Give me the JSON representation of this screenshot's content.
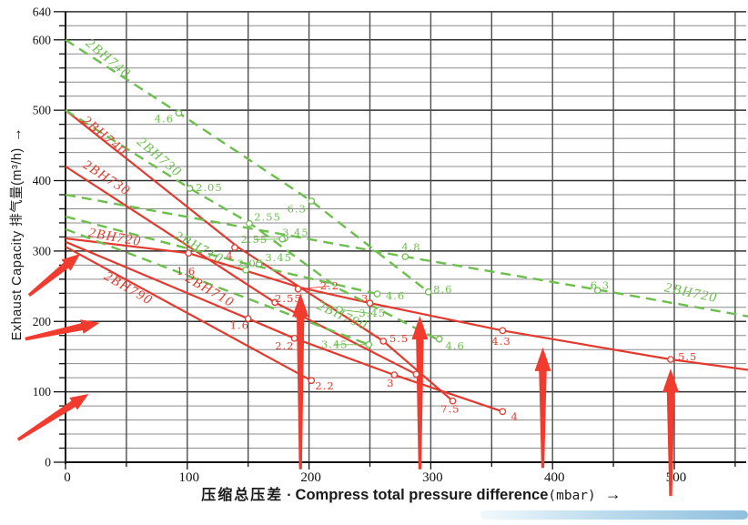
{
  "chart_data": {
    "type": "line",
    "xlabel": {
      "zh": "压缩总压差",
      "dot": "·",
      "en": "Compress total pressure difference",
      "unit": "(mbar)",
      "arrow": "→"
    },
    "ylabel": {
      "text": "Exhaust Capacity 排气量(m³/h)",
      "arrow": "→"
    },
    "xlim": [
      0,
      560
    ],
    "ylim": [
      0,
      640
    ],
    "x_ticks": [
      0,
      100,
      200,
      300,
      400,
      500
    ],
    "y_ticks": [
      0,
      100,
      200,
      300,
      400,
      500,
      600,
      640
    ],
    "x_minor_step": 50,
    "y_minor_step": 20,
    "grid": true,
    "legend_position": "none",
    "colors": {
      "red": "#e23a2e",
      "green": "#6cbf4d",
      "arrow": "#f23b2f",
      "grid_major": "#2f2f2f",
      "grid_minor": "#8c8c8c",
      "grid_vertical": "#4d4d4d",
      "axis": "#111111",
      "accent_bar": [
        "#f2f9fd",
        "#8fc0de"
      ]
    },
    "series": [
      {
        "name": "2BH740",
        "color": "red",
        "style": "solid",
        "points": [
          [
            0,
            500
          ],
          [
            142,
            305
          ],
          [
            261,
            172
          ],
          [
            318,
            87
          ]
        ]
      },
      {
        "name": "2BH730",
        "color": "red",
        "style": "solid",
        "points": [
          [
            0,
            420
          ],
          [
            172,
            227
          ],
          [
            288,
            125
          ]
        ]
      },
      {
        "name": "2BH720",
        "color": "red",
        "style": "solid",
        "points": [
          [
            0,
            318
          ],
          [
            101,
            297
          ],
          [
            193,
            248
          ],
          [
            250,
            226
          ],
          [
            359,
            187
          ],
          [
            497,
            146
          ],
          [
            561,
            131
          ]
        ]
      },
      {
        "name": "2BH710",
        "color": "red",
        "style": "solid",
        "points": [
          [
            0,
            313
          ],
          [
            150,
            204
          ],
          [
            188,
            176
          ],
          [
            270,
            124
          ],
          [
            359,
            72
          ]
        ]
      },
      {
        "name": "2BH790",
        "color": "red",
        "style": "solid",
        "points": [
          [
            0,
            306
          ],
          [
            202,
            116
          ]
        ]
      },
      {
        "name": "2BH740",
        "color": "green",
        "style": "dashed",
        "points": [
          [
            0,
            600
          ],
          [
            93,
            496
          ],
          [
            202,
            371
          ],
          [
            298,
            242
          ]
        ]
      },
      {
        "name": "2BH730",
        "color": "green",
        "style": "dashed",
        "points": [
          [
            0,
            500
          ],
          [
            102,
            389
          ],
          [
            151,
            340
          ],
          [
            225,
            246
          ],
          [
            307,
            173
          ]
        ]
      },
      {
        "name": "2BH720",
        "color": "green",
        "style": "dashed",
        "points": [
          [
            0,
            380
          ],
          [
            279,
            292
          ],
          [
            437,
            245
          ],
          [
            561,
            207
          ]
        ]
      },
      {
        "name": "2BH710",
        "color": "green",
        "style": "dashed",
        "points": [
          [
            0,
            349
          ],
          [
            146,
            283
          ],
          [
            256,
            239
          ]
        ]
      },
      {
        "name": "2BH790",
        "color": "green",
        "style": "dashed",
        "points": [
          [
            0,
            331
          ],
          [
            249,
            167
          ]
        ]
      }
    ],
    "power_annotations": [
      {
        "label": "4",
        "color": "red",
        "pos": [
          135,
          293
        ],
        "circle": [
          139,
          305
        ]
      },
      {
        "label": "1.6",
        "color": "red",
        "pos": [
          99,
          271
        ],
        "circle": [
          101,
          297
        ]
      },
      {
        "label": "1.6",
        "color": "red",
        "pos": [
          143,
          194
        ],
        "circle": [
          150,
          204
        ]
      },
      {
        "label": "2.2",
        "color": "red",
        "pos": [
          217,
          250
        ],
        "circle": [
          191,
          246
        ],
        "leader": true
      },
      {
        "label": "2.55",
        "color": "red",
        "pos": [
          183,
          232
        ],
        "circle": [
          172,
          227
        ]
      },
      {
        "label": "3",
        "color": "red",
        "pos": [
          246,
          232
        ],
        "circle": [
          250,
          226
        ]
      },
      {
        "label": "3",
        "color": "red",
        "pos": [
          267,
          112
        ],
        "circle": [
          270,
          124
        ]
      },
      {
        "label": "2.2",
        "color": "red",
        "pos": [
          180,
          165
        ],
        "circle": [
          188,
          176
        ]
      },
      {
        "label": "2.2",
        "color": "red",
        "pos": [
          213,
          108
        ],
        "circle": [
          202,
          116
        ]
      },
      {
        "label": "4",
        "color": "red",
        "pos": [
          292,
          116
        ],
        "circle": [
          288,
          125
        ]
      },
      {
        "label": "5.5",
        "color": "red",
        "pos": [
          274,
          175
        ],
        "circle": [
          261,
          172
        ]
      },
      {
        "label": "7.5",
        "color": "red",
        "pos": [
          316,
          75
        ],
        "circle": [
          318,
          87
        ]
      },
      {
        "label": "4",
        "color": "red",
        "pos": [
          369,
          64
        ],
        "circle": [
          359,
          72
        ]
      },
      {
        "label": "4.3",
        "color": "red",
        "pos": [
          358,
          171
        ],
        "circle": [
          359,
          187
        ]
      },
      {
        "label": "5.5",
        "color": "red",
        "pos": [
          511,
          149
        ],
        "circle": [
          497,
          146
        ]
      },
      {
        "label": "4.6",
        "color": "green",
        "pos": [
          81,
          487
        ],
        "circle": [
          93,
          496
        ]
      },
      {
        "label": "2.05",
        "color": "green",
        "pos": [
          118,
          390
        ],
        "circle": [
          102,
          389
        ]
      },
      {
        "label": "6.3",
        "color": "green",
        "pos": [
          190,
          359
        ],
        "circle": [
          202,
          371
        ]
      },
      {
        "label": "2.55",
        "color": "green",
        "pos": [
          166,
          348
        ],
        "circle": [
          151,
          339
        ]
      },
      {
        "label": "3.45",
        "color": "green",
        "pos": [
          189,
          326
        ],
        "circle": [
          180,
          318
        ]
      },
      {
        "label": "2.55",
        "color": "green",
        "pos": [
          155,
          316
        ],
        "circle": [
          178,
          317
        ],
        "leader": true
      },
      {
        "label": "3.45",
        "color": "green",
        "pos": [
          175,
          290
        ],
        "circle": [
          159,
          282
        ]
      },
      {
        "label": "2.05",
        "color": "green",
        "pos": [
          152,
          282
        ],
        "circle": [
          148,
          273
        ]
      },
      {
        "label": "4.8",
        "color": "green",
        "pos": [
          284,
          305
        ],
        "circle": [
          279,
          292
        ]
      },
      {
        "label": "8.6",
        "color": "green",
        "pos": [
          310,
          245
        ],
        "circle": [
          298,
          242
        ]
      },
      {
        "label": "4.6",
        "color": "green",
        "pos": [
          271,
          236
        ],
        "circle": [
          256,
          239
        ]
      },
      {
        "label": "3.45",
        "color": "green",
        "pos": [
          252,
          211
        ],
        "circle": [
          225,
          217
        ],
        "leader": true
      },
      {
        "label": "3.45",
        "color": "green",
        "pos": [
          221,
          167
        ],
        "circle": [
          249,
          167
        ],
        "leader": true
      },
      {
        "label": "4.6",
        "color": "green",
        "pos": [
          320,
          165
        ],
        "circle": [
          307,
          175
        ]
      },
      {
        "label": "6.3",
        "color": "green",
        "pos": [
          439,
          251
        ],
        "circle": [
          437,
          244
        ]
      }
    ],
    "model_labels": [
      {
        "text": "2BH740",
        "color": "green",
        "pos": [
          33,
          569
        ],
        "rot": 40
      },
      {
        "text": "2BH730",
        "color": "green",
        "pos": [
          75,
          429
        ],
        "rot": 40
      },
      {
        "text": "2BH710",
        "color": "green",
        "pos": [
          108,
          300
        ],
        "rot": 28
      },
      {
        "text": "2BH790",
        "color": "green",
        "pos": [
          226,
          203
        ],
        "rot": 24
      },
      {
        "text": "2BH720",
        "color": "green",
        "pos": [
          513,
          235
        ],
        "rot": 12
      },
      {
        "text": "2BH740",
        "color": "red",
        "pos": [
          30,
          459
        ],
        "rot": 40
      },
      {
        "text": "2BH730",
        "color": "red",
        "pos": [
          32,
          399
        ],
        "rot": 33
      },
      {
        "text": "2BH720",
        "color": "red",
        "pos": [
          40,
          314
        ],
        "rot": 10
      },
      {
        "text": "2BH790",
        "color": "red",
        "pos": [
          50,
          242
        ],
        "rot": 30
      },
      {
        "text": "2BH710",
        "color": "red",
        "pos": [
          117,
          239
        ],
        "rot": 30
      }
    ],
    "arrows": {
      "vertical": [
        {
          "x": 193,
          "tip": 240,
          "tail": -10
        },
        {
          "x": 291,
          "tip": 208,
          "tail": -10
        },
        {
          "x": 392,
          "tip": 163,
          "tail": -8
        },
        {
          "x": 497,
          "tip": 133,
          "tail": -48
        }
      ],
      "diagonal": [
        {
          "from": [
            -30,
            237
          ],
          "to": [
            12,
            296
          ]
        },
        {
          "from": [
            -33,
            175
          ],
          "to": [
            28,
            198
          ]
        },
        {
          "from": [
            -39,
            32
          ],
          "to": [
            19,
            97
          ]
        }
      ]
    }
  }
}
